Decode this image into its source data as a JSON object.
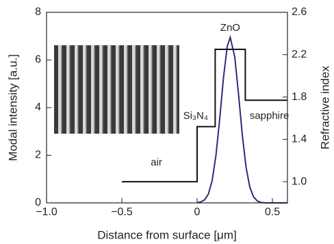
{
  "chart_data": {
    "type": "line",
    "xlabel": "Distance from surface [μm]",
    "ylabel": "Modal intensity [a.u.]",
    "y2label": "Refractive index",
    "xlim": [
      -1.0,
      0.6
    ],
    "ylim": [
      0,
      8
    ],
    "y2lim": [
      0.8,
      2.6
    ],
    "xticks": [
      {
        "value": -1.0,
        "label": "−1.0"
      },
      {
        "value": -0.5,
        "label": "−0.5"
      },
      0,
      0.5
    ],
    "yticks": [
      0,
      2,
      4,
      6,
      8
    ],
    "y2ticks": [
      {
        "value": 1.0,
        "label": "1.0"
      },
      1.4,
      1.8,
      2.2,
      2.6
    ],
    "series": [
      {
        "color": "#2b2a7a",
        "x": [
          0,
          0.025,
          0.05,
          0.075,
          0.1,
          0.125,
          0.15,
          0.175,
          0.2,
          0.22,
          0.25,
          0.275,
          0.3,
          0.325,
          0.35,
          0.375,
          0.4,
          0.425,
          0.45,
          0.5,
          0.6
        ],
        "values": [
          0.01,
          0.04,
          0.13,
          0.37,
          0.94,
          1.99,
          3.52,
          5.25,
          6.57,
          6.95,
          6.13,
          4.57,
          2.86,
          1.5,
          0.66,
          0.25,
          0.08,
          0.02,
          0,
          0,
          0
        ]
      },
      {
        "color": "#111111",
        "axis": "y2",
        "x": [
          -0.5,
          0,
          0,
          0.12,
          0.12,
          0.32,
          0.32,
          0.6
        ],
        "values": [
          1.0,
          1.0,
          1.52,
          1.52,
          2.25,
          2.25,
          1.77,
          1.77
        ]
      }
    ],
    "annotations": [
      {
        "text": "ZnO",
        "x": 0.22,
        "y2": 2.45
      },
      {
        "text": "Si₃N₄",
        "x": -0.01,
        "y2": 1.62
      },
      {
        "text": "sapphire",
        "x": 0.48,
        "y2": 1.62
      },
      {
        "text": "air",
        "x": -0.27,
        "y2": 1.18
      }
    ]
  }
}
